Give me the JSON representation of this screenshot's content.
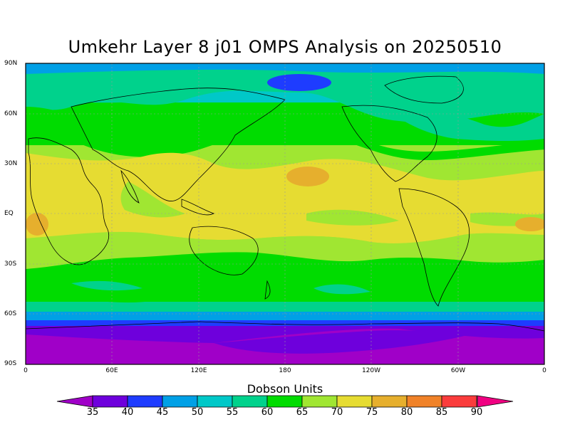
{
  "title": "Umkehr Layer 8 j01 OMPS Analysis on 20250510",
  "map": {
    "lat_labels": [
      "90N",
      "60N",
      "30N",
      "EQ",
      "30S",
      "60S",
      "90S"
    ],
    "lon_labels": [
      "0",
      "60E",
      "120E",
      "180",
      "120W",
      "60W",
      "0"
    ]
  },
  "colorbar": {
    "title": "Dobson Units",
    "levels": [
      "35",
      "40",
      "45",
      "50",
      "55",
      "60",
      "65",
      "70",
      "75",
      "80",
      "85",
      "90"
    ],
    "colors": [
      "#a000c8",
      "#6e00dc",
      "#1e3cff",
      "#00a0e6",
      "#00c8c8",
      "#00d28c",
      "#00dc00",
      "#a0e632",
      "#e6dc32",
      "#e6af2d",
      "#f08228",
      "#fa3c3c",
      "#f00082"
    ]
  }
}
